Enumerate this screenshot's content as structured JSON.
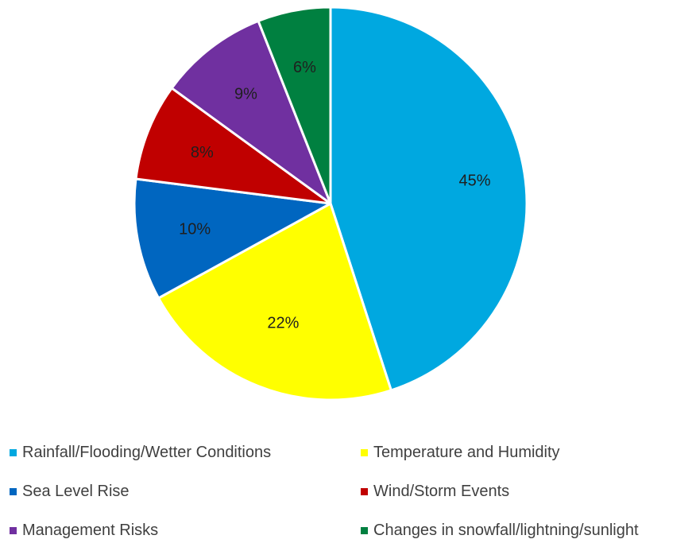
{
  "chart_data": {
    "type": "pie",
    "title": "",
    "categories": [
      "Rainfall/Flooding/Wetter Conditions",
      "Temperature and Humidity",
      "Sea Level Rise",
      "Wind/Storm Events",
      "Management Risks",
      "Changes in snowfall/lightning/sunlight"
    ],
    "values": [
      45,
      22,
      10,
      8,
      9,
      6
    ],
    "labels": [
      "45%",
      "22%",
      "10%",
      "8%",
      "9%",
      "6%"
    ],
    "colors": [
      "#00a8e0",
      "#ffff00",
      "#0066c0",
      "#c00000",
      "#7030a0",
      "#008040"
    ],
    "legend_position": "bottom",
    "grid": false
  }
}
